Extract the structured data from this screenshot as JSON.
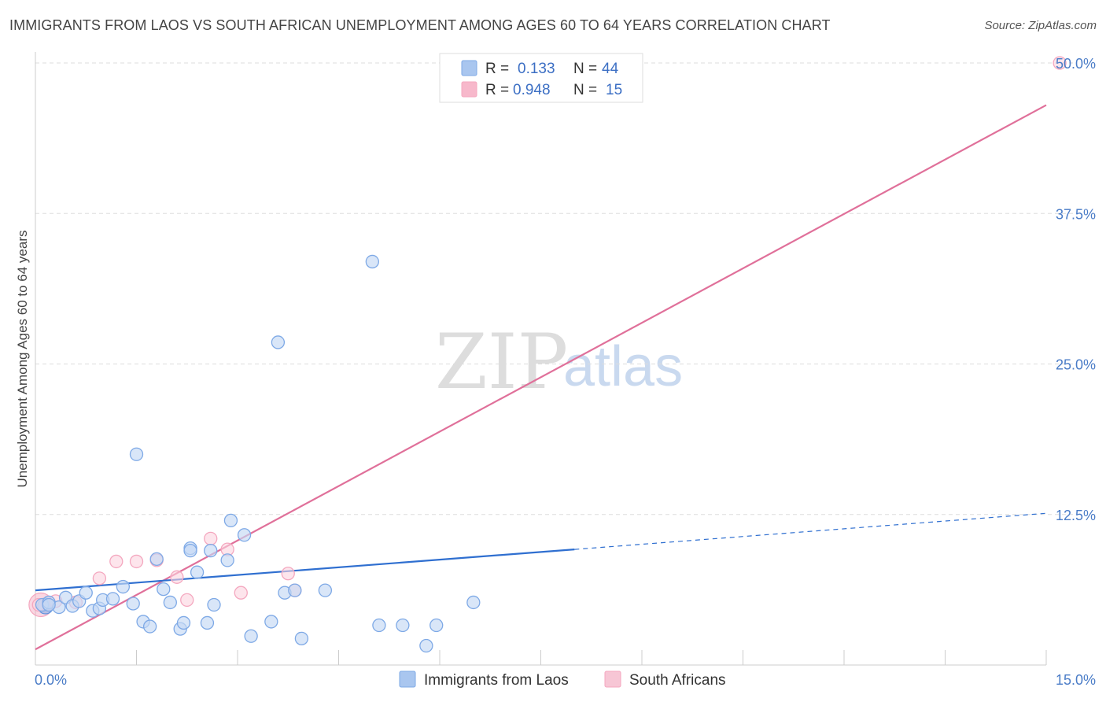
{
  "title": "IMMIGRANTS FROM LAOS VS SOUTH AFRICAN UNEMPLOYMENT AMONG AGES 60 TO 64 YEARS CORRELATION CHART",
  "source": "Source: ZipAtlas.com",
  "watermark": {
    "zip": "ZIP",
    "atlas": "atlas"
  },
  "legend_box": {
    "rows": [
      {
        "r_label": "R =",
        "r_value": "0.133",
        "n_label": "N =",
        "n_value": "44",
        "color": "#a9c6ef"
      },
      {
        "r_label": "R =",
        "r_value": "0.948",
        "n_label": "N =",
        "n_value": "15",
        "color": "#f7b8cb"
      }
    ]
  },
  "chart_data": {
    "type": "scatter",
    "title": "IMMIGRANTS FROM LAOS VS SOUTH AFRICAN UNEMPLOYMENT AMONG AGES 60 TO 64 YEARS CORRELATION CHART",
    "xlabel": "",
    "ylabel": "Unemployment Among Ages 60 to 64 years",
    "xlim": [
      0,
      15
    ],
    "ylim": [
      0,
      50
    ],
    "x_tick_labels": [
      "0.0%",
      "15.0%"
    ],
    "y_ticks": [
      12.5,
      25.0,
      37.5,
      50.0
    ],
    "y_tick_labels": [
      "12.5%",
      "25.0%",
      "37.5%",
      "50.0%"
    ],
    "grid": true,
    "legend_position": "bottom-center",
    "series": [
      {
        "name": "Immigrants from Laos",
        "color": "#7ea9e6",
        "line_color": "#2f6fd0",
        "trend": {
          "x0": 0.0,
          "y0": 6.2,
          "x1": 8.0,
          "y1": 9.6,
          "x_dash_end": 15.0,
          "y_dash_end": 12.6
        },
        "points": [
          [
            0.1,
            5.0
          ],
          [
            0.2,
            5.2
          ],
          [
            0.35,
            4.8
          ],
          [
            0.45,
            5.6
          ],
          [
            0.55,
            4.9
          ],
          [
            0.65,
            5.3
          ],
          [
            0.75,
            6.0
          ],
          [
            0.85,
            4.5
          ],
          [
            0.95,
            4.7
          ],
          [
            1.0,
            5.4
          ],
          [
            1.15,
            5.5
          ],
          [
            1.3,
            6.5
          ],
          [
            1.45,
            5.1
          ],
          [
            1.5,
            17.5
          ],
          [
            1.6,
            3.6
          ],
          [
            1.7,
            3.2
          ],
          [
            1.8,
            8.8
          ],
          [
            1.9,
            6.3
          ],
          [
            2.0,
            5.2
          ],
          [
            2.15,
            3.0
          ],
          [
            2.3,
            9.7
          ],
          [
            2.2,
            3.5
          ],
          [
            2.3,
            9.5
          ],
          [
            2.4,
            7.7
          ],
          [
            2.55,
            3.5
          ],
          [
            2.6,
            9.5
          ],
          [
            2.65,
            5.0
          ],
          [
            2.85,
            8.7
          ],
          [
            2.9,
            12.0
          ],
          [
            3.1,
            10.8
          ],
          [
            3.2,
            2.4
          ],
          [
            3.5,
            3.6
          ],
          [
            3.6,
            26.8
          ],
          [
            3.7,
            6.0
          ],
          [
            3.85,
            6.2
          ],
          [
            3.95,
            2.2
          ],
          [
            4.3,
            6.2
          ],
          [
            5.0,
            33.5
          ],
          [
            5.1,
            3.3
          ],
          [
            5.45,
            3.3
          ],
          [
            5.8,
            1.6
          ],
          [
            5.95,
            3.3
          ],
          [
            6.5,
            5.2
          ],
          [
            0.2,
            5.0
          ]
        ]
      },
      {
        "name": "South Africans",
        "color": "#f4a7bf",
        "line_color": "#e0709a",
        "trend": {
          "x0": 0.0,
          "y0": 1.3,
          "x1": 15.0,
          "y1": 46.5
        },
        "points": [
          [
            0.05,
            5.0
          ],
          [
            0.3,
            5.3
          ],
          [
            0.6,
            5.2
          ],
          [
            0.95,
            7.2
          ],
          [
            1.2,
            8.6
          ],
          [
            1.5,
            8.6
          ],
          [
            1.8,
            8.7
          ],
          [
            2.1,
            7.3
          ],
          [
            2.25,
            5.4
          ],
          [
            2.6,
            10.5
          ],
          [
            2.85,
            9.6
          ],
          [
            3.05,
            6.0
          ],
          [
            3.75,
            7.6
          ],
          [
            3.85,
            6.2
          ],
          [
            15.2,
            50.0
          ]
        ]
      }
    ]
  }
}
